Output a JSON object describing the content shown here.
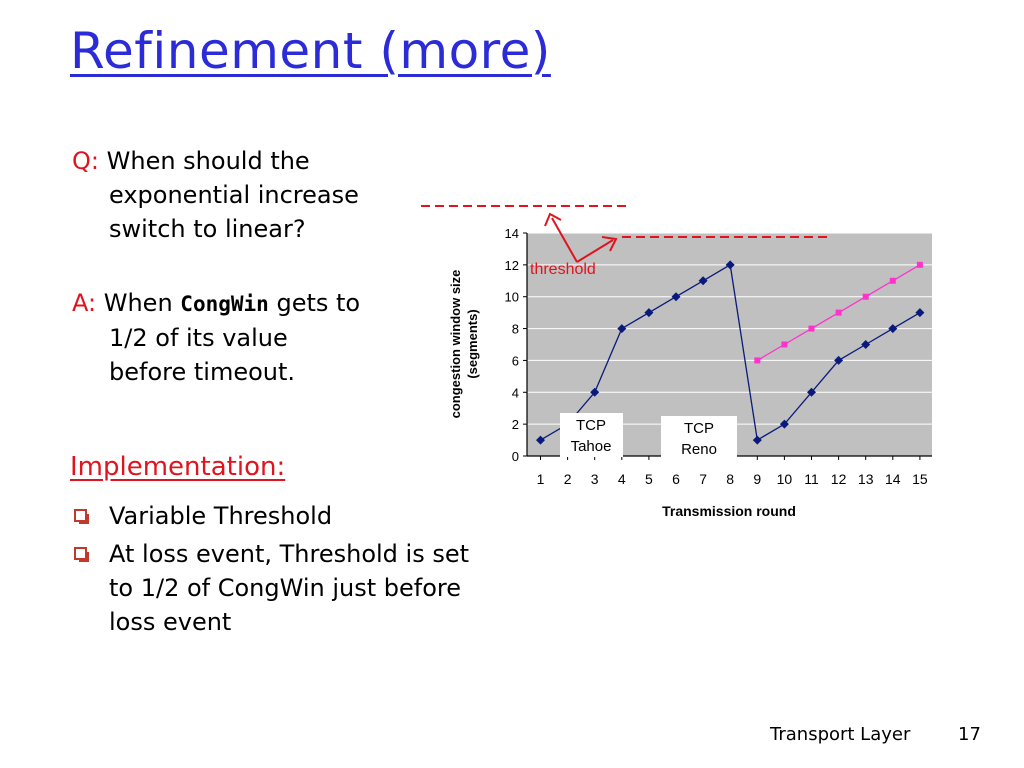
{
  "slide": {
    "title": "Refinement (more)",
    "q_label": "Q:",
    "q_text": "When should the exponential increase switch to linear?",
    "a_label": "A:",
    "a_text_before": "When",
    "a_code": "CongWin",
    "a_text_after": "gets to 1/2 of its value before timeout.",
    "implementation_heading": "Implementation:",
    "bullets": [
      "Variable Threshold",
      "At loss event, Threshold is set to 1/2 of CongWin just before loss event"
    ],
    "footer_label": "Transport Layer",
    "page_number": "17"
  },
  "chart_data": {
    "type": "line",
    "xlabel": "Transmission round",
    "ylabel": "congestion window size (segments)",
    "x": [
      1,
      2,
      3,
      4,
      5,
      6,
      7,
      8,
      9,
      10,
      11,
      12,
      13,
      14,
      15
    ],
    "ylim": [
      0,
      14
    ],
    "yticks": [
      0,
      2,
      4,
      6,
      8,
      10,
      12,
      14
    ],
    "series": [
      {
        "name": "TCP Tahoe / Reno",
        "color": "#0b1a7a",
        "marker": "diamond",
        "x": [
          1,
          2,
          3,
          4,
          5,
          6,
          7,
          8,
          9,
          10,
          11,
          12,
          13,
          14,
          15
        ],
        "y": [
          1,
          2,
          4,
          8,
          9,
          10,
          11,
          12,
          1,
          2,
          4,
          6,
          7,
          8,
          9
        ]
      },
      {
        "name": "",
        "color": "#ff33cc",
        "marker": "square",
        "x": [
          9,
          10,
          11,
          12,
          13,
          14,
          15
        ],
        "y": [
          6,
          7,
          8,
          9,
          10,
          11,
          12
        ]
      }
    ],
    "annotations": {
      "threshold": "threshold",
      "tahoe_line1": "TCP",
      "tahoe_line2": "Tahoe",
      "reno_line1": "TCP",
      "reno_line2": "Reno"
    },
    "colors": {
      "plot_bg": "#c0c0c0",
      "grid": "#ffffff",
      "annotation": "#e0141e"
    }
  }
}
